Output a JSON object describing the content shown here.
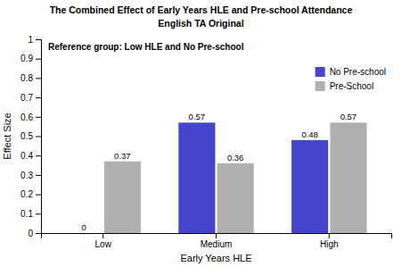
{
  "chart_data": {
    "type": "bar",
    "title": "The Combined Effect of Early Years HLE and Pre-school Attendance",
    "subtitle": "English TA Original",
    "annotations": [
      "Reference group: Low HLE and No Pre-school"
    ],
    "xlabel": "Early Years HLE",
    "ylabel": "Effect Size",
    "categories": [
      "Low",
      "Medium",
      "High"
    ],
    "series": [
      {
        "name": "No Pre-school",
        "color": "#4444cc",
        "values": [
          0,
          0.57,
          0.48
        ]
      },
      {
        "name": "Pre-School",
        "color": "#b0b0b0",
        "values": [
          0.37,
          0.36,
          0.57
        ]
      }
    ],
    "ylim": [
      0,
      1.0
    ],
    "yticks": [
      0,
      0.1,
      0.2,
      0.3,
      0.4,
      0.5,
      0.6,
      0.7,
      0.8,
      0.9,
      1
    ],
    "grid": false,
    "legend": "upper right",
    "data_labels": true
  }
}
